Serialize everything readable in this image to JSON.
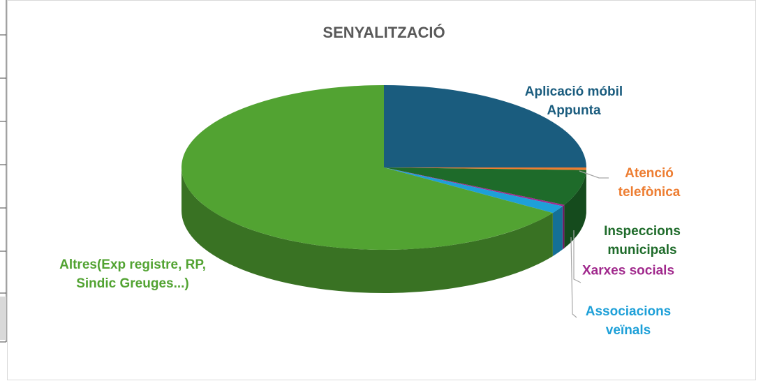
{
  "chart_data": {
    "type": "pie",
    "title": "SENYALITZACIÓ",
    "categories": [
      "Aplicació móbil Appunta",
      "Atenció telefònica",
      "Inspeccions municipals",
      "Xarxes socials",
      "Associacions veïnals",
      "Altres(Exp registre, RP, Sindic Greuges...)"
    ],
    "values": [
      25,
      0.5,
      7,
      0.3,
      1.5,
      65.7
    ],
    "colors": [
      "#1a5c7e",
      "#ed7d31",
      "#1e6b2a",
      "#a0288c",
      "#1ea0d8",
      "#52a332"
    ]
  }
}
